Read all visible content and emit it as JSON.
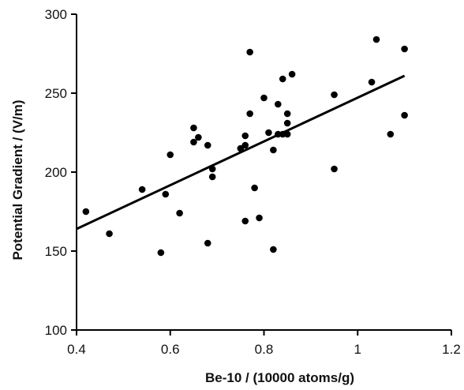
{
  "chart_data": {
    "type": "scatter",
    "title": "",
    "xlabel": "Be-10 / (10000 atoms/g)",
    "ylabel": "Potential Gradient / (V/m)",
    "xlim": [
      0.4,
      1.2
    ],
    "ylim": [
      100,
      300
    ],
    "x_ticks": [
      0.4,
      0.6,
      0.8,
      1.0,
      1.2
    ],
    "x_tick_labels": [
      "0.4",
      "0.6",
      "0.8",
      "1",
      "1.2"
    ],
    "y_ticks": [
      100,
      150,
      200,
      250,
      300
    ],
    "y_tick_labels": [
      "100",
      "150",
      "200",
      "250",
      "300"
    ],
    "grid": false,
    "legend": false,
    "series": [
      {
        "marker_color": "#000000",
        "points": [
          {
            "x": 0.42,
            "y": 175
          },
          {
            "x": 0.47,
            "y": 161
          },
          {
            "x": 0.54,
            "y": 189
          },
          {
            "x": 0.58,
            "y": 149
          },
          {
            "x": 0.59,
            "y": 186
          },
          {
            "x": 0.6,
            "y": 211
          },
          {
            "x": 0.62,
            "y": 174
          },
          {
            "x": 0.65,
            "y": 228
          },
          {
            "x": 0.65,
            "y": 219
          },
          {
            "x": 0.66,
            "y": 222
          },
          {
            "x": 0.68,
            "y": 217
          },
          {
            "x": 0.68,
            "y": 155
          },
          {
            "x": 0.69,
            "y": 202
          },
          {
            "x": 0.69,
            "y": 197
          },
          {
            "x": 0.75,
            "y": 215
          },
          {
            "x": 0.76,
            "y": 217
          },
          {
            "x": 0.76,
            "y": 223
          },
          {
            "x": 0.76,
            "y": 169
          },
          {
            "x": 0.77,
            "y": 276
          },
          {
            "x": 0.77,
            "y": 237
          },
          {
            "x": 0.78,
            "y": 190
          },
          {
            "x": 0.79,
            "y": 171
          },
          {
            "x": 0.8,
            "y": 247
          },
          {
            "x": 0.81,
            "y": 225
          },
          {
            "x": 0.82,
            "y": 151
          },
          {
            "x": 0.82,
            "y": 214
          },
          {
            "x": 0.83,
            "y": 224
          },
          {
            "x": 0.83,
            "y": 243
          },
          {
            "x": 0.84,
            "y": 259
          },
          {
            "x": 0.84,
            "y": 224
          },
          {
            "x": 0.85,
            "y": 231
          },
          {
            "x": 0.85,
            "y": 224
          },
          {
            "x": 0.85,
            "y": 237
          },
          {
            "x": 0.86,
            "y": 262
          },
          {
            "x": 0.95,
            "y": 249
          },
          {
            "x": 0.95,
            "y": 202
          },
          {
            "x": 1.03,
            "y": 257
          },
          {
            "x": 1.04,
            "y": 284
          },
          {
            "x": 1.07,
            "y": 224
          },
          {
            "x": 1.1,
            "y": 278
          },
          {
            "x": 1.1,
            "y": 236
          }
        ]
      }
    ],
    "trendline": {
      "type": "linear",
      "x": [
        0.4,
        1.1
      ],
      "y": [
        164,
        261
      ]
    }
  }
}
